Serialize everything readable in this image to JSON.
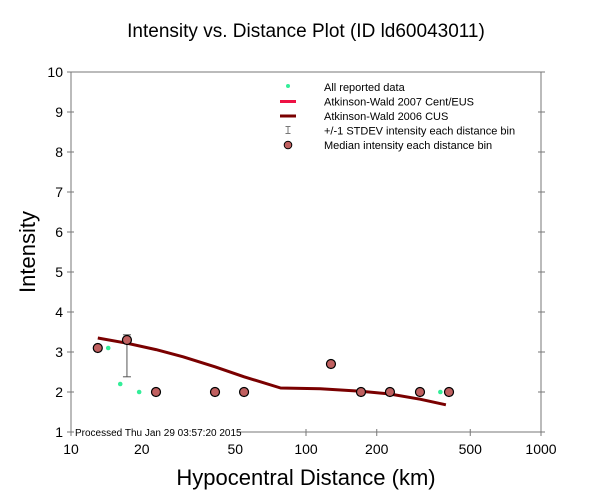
{
  "chart_data": {
    "type": "scatter",
    "title": "Intensity vs. Distance Plot (ID ld60043011)",
    "xlabel": "Hypocentral Distance (km)",
    "ylabel": "Intensity",
    "xscale": "log",
    "xlim": [
      10,
      1000
    ],
    "ylim": [
      1,
      10
    ],
    "xticks": [
      {
        "value": 10,
        "label": "10"
      },
      {
        "value": 20,
        "label": "20"
      },
      {
        "value": 50,
        "label": "50"
      },
      {
        "value": 100,
        "label": "100"
      },
      {
        "value": 200,
        "label": "200"
      },
      {
        "value": 500,
        "label": "500"
      },
      {
        "value": 1000,
        "label": "1000"
      }
    ],
    "yticks": [
      {
        "value": 1,
        "label": "1"
      },
      {
        "value": 2,
        "label": "2"
      },
      {
        "value": 3,
        "label": "3"
      },
      {
        "value": 4,
        "label": "4"
      },
      {
        "value": 5,
        "label": "5"
      },
      {
        "value": 6,
        "label": "6"
      },
      {
        "value": 7,
        "label": "7"
      },
      {
        "value": 8,
        "label": "8"
      },
      {
        "value": 9,
        "label": "9"
      },
      {
        "value": 10,
        "label": "10"
      }
    ],
    "grid": false,
    "legend_position": "top-right",
    "series": [
      {
        "name": "All reported data",
        "kind": "points",
        "color": "#33ee99",
        "points": [
          {
            "x": 14.4,
            "y": 3.1
          },
          {
            "x": 16.2,
            "y": 2.2
          },
          {
            "x": 19.5,
            "y": 2.0
          },
          {
            "x": 22.8,
            "y": 2.0
          },
          {
            "x": 40.6,
            "y": 2.0
          },
          {
            "x": 53.3,
            "y": 2.0
          },
          {
            "x": 125,
            "y": 2.7
          },
          {
            "x": 373,
            "y": 2.0
          }
        ]
      },
      {
        "name": "Atkinson-Wald 2007 Cent/EUS",
        "kind": "line",
        "color": "#ee1144",
        "points": []
      },
      {
        "name": "Atkinson-Wald 2006 CUS",
        "kind": "line",
        "color": "#7a0000",
        "points": [
          {
            "x": 13.0,
            "y": 3.35
          },
          {
            "x": 17.3,
            "y": 3.22
          },
          {
            "x": 23.0,
            "y": 3.06
          },
          {
            "x": 30.0,
            "y": 2.88
          },
          {
            "x": 41.0,
            "y": 2.63
          },
          {
            "x": 54.5,
            "y": 2.38
          },
          {
            "x": 78.0,
            "y": 2.1
          },
          {
            "x": 115.0,
            "y": 2.08
          },
          {
            "x": 171.4,
            "y": 2.02
          },
          {
            "x": 227.6,
            "y": 1.95
          },
          {
            "x": 305.5,
            "y": 1.82
          },
          {
            "x": 394.0,
            "y": 1.68
          }
        ]
      },
      {
        "name": "+/-1 STDEV intensity each distance bin",
        "kind": "errorbar",
        "color": "#555555",
        "bars": [
          {
            "x": 17.3,
            "low": 2.38,
            "high": 3.43
          }
        ]
      },
      {
        "name": "Median intensity each distance bin",
        "kind": "points",
        "color": "#c06060",
        "points": [
          {
            "x": 13.0,
            "y": 3.1
          },
          {
            "x": 17.3,
            "y": 3.3
          },
          {
            "x": 23.0,
            "y": 2.0
          },
          {
            "x": 41.0,
            "y": 2.0
          },
          {
            "x": 54.5,
            "y": 2.0
          },
          {
            "x": 127.7,
            "y": 2.7
          },
          {
            "x": 171.4,
            "y": 2.0
          },
          {
            "x": 227.6,
            "y": 2.0
          },
          {
            "x": 305.5,
            "y": 2.0
          },
          {
            "x": 406.0,
            "y": 2.0
          }
        ]
      }
    ],
    "legend": [
      {
        "label": "All reported data",
        "symbol": "dot",
        "color": "#33ee99"
      },
      {
        "label": "Atkinson-Wald 2007 Cent/EUS",
        "symbol": "line",
        "color": "#ee1144"
      },
      {
        "label": "Atkinson-Wald 2006 CUS",
        "symbol": "line",
        "color": "#7a0000"
      },
      {
        "label": "+/-1 STDEV intensity each distance bin",
        "symbol": "errorbar",
        "color": "#777777"
      },
      {
        "label": "Median intensity each distance bin",
        "symbol": "circle",
        "color": "#c06060"
      }
    ],
    "annotations": [
      {
        "text": "Processed Thu Jan 29 03:57:20 2015",
        "position": "bottom-left"
      }
    ]
  }
}
